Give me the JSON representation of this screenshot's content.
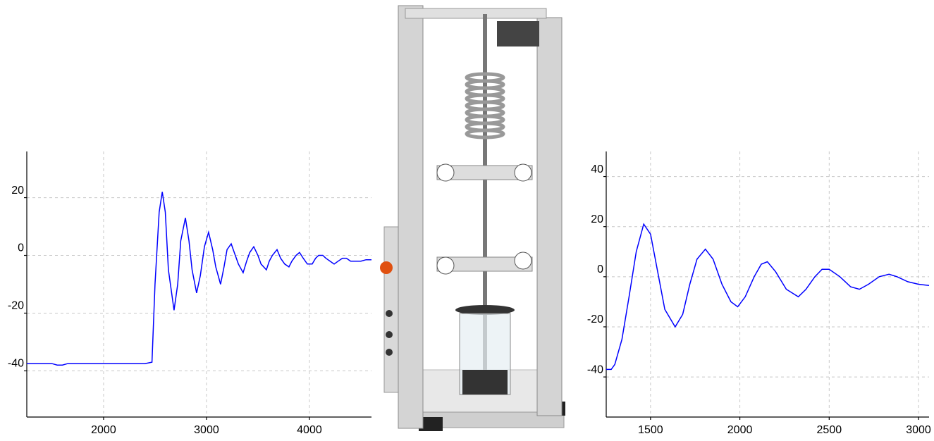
{
  "chart_data": [
    {
      "type": "line",
      "x": [
        1254,
        1500,
        1550,
        1600,
        1650,
        2000,
        2400,
        2470,
        2500,
        2540,
        2570,
        2600,
        2630,
        2685,
        2720,
        2750,
        2795,
        2830,
        2860,
        2904,
        2940,
        2980,
        3020,
        3060,
        3090,
        3137,
        3170,
        3200,
        3240,
        3280,
        3310,
        3356,
        3390,
        3420,
        3459,
        3500,
        3530,
        3582,
        3610,
        3640,
        3685,
        3720,
        3760,
        3801,
        3830,
        3870,
        3904,
        3940,
        3980,
        4027,
        4060,
        4090,
        4130,
        4160,
        4200,
        4240,
        4280,
        4320,
        4360,
        4400,
        4450,
        4500,
        4550,
        4603
      ],
      "series": [
        {
          "color": "#0000ff",
          "values": [
            -37.5,
            -37.5,
            -38,
            -38,
            -37.5,
            -37.5,
            -37.5,
            -37,
            -10,
            15,
            22,
            15,
            -5,
            -19,
            -10,
            5,
            13,
            5,
            -5,
            -13,
            -7,
            3,
            8,
            2,
            -4,
            -10,
            -4,
            2,
            4,
            0,
            -3,
            -6,
            -2,
            1,
            3,
            0,
            -3,
            -5,
            -2,
            0,
            2,
            -1,
            -3,
            -4,
            -2,
            0,
            1,
            -1,
            -3,
            -3,
            -1,
            0,
            0,
            -1,
            -2,
            -3,
            -2,
            -1,
            -1,
            -2,
            -2,
            -2,
            -1.5,
            -1.5
          ]
        }
      ],
      "xlim": [
        1254,
        4603
      ],
      "xticks": [
        2000,
        3000,
        4000
      ],
      "ylim": [
        -56,
        36
      ],
      "yticks": [
        20,
        0,
        -20,
        -40
      ],
      "grid": true
    },
    {
      "type": "line",
      "x": [
        1252,
        1280,
        1300,
        1340,
        1380,
        1420,
        1462,
        1500,
        1540,
        1580,
        1638,
        1680,
        1720,
        1760,
        1807,
        1850,
        1900,
        1950,
        1988,
        2030,
        2080,
        2120,
        2154,
        2200,
        2260,
        2327,
        2370,
        2420,
        2460,
        2500,
        2560,
        2620,
        2669,
        2720,
        2780,
        2835,
        2880,
        2940,
        3000,
        3059
      ],
      "series": [
        {
          "color": "#0000ff",
          "values": [
            -37,
            -37,
            -35,
            -25,
            -8,
            10,
            21,
            17,
            2,
            -13,
            -20,
            -15,
            -3,
            7,
            11,
            7,
            -3,
            -10,
            -12,
            -8,
            0,
            5,
            6,
            2,
            -5,
            -8,
            -5,
            0,
            3,
            3,
            0,
            -4,
            -5,
            -3,
            0,
            1,
            0,
            -2,
            -3,
            -3.5
          ]
        }
      ],
      "xlim": [
        1252,
        3059
      ],
      "xticks": [
        1500,
        2000,
        2500,
        3000
      ],
      "ylim": [
        -56,
        50
      ],
      "yticks": [
        40,
        20,
        0,
        -20,
        -40
      ],
      "grid": true
    }
  ]
}
